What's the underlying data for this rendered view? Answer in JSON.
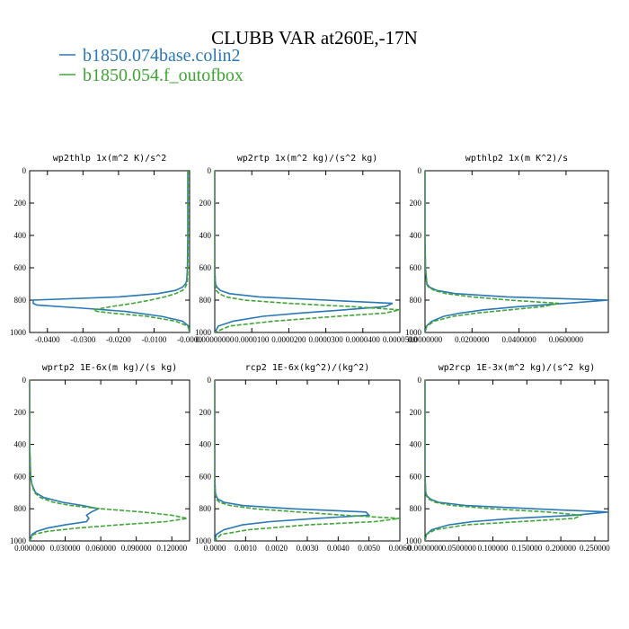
{
  "figure": {
    "title": "CLUBB VAR at260E,-17N",
    "colors": {
      "series1": "#2a78b4",
      "series2": "#3fa535"
    }
  },
  "chart_data": [
    {
      "type": "line",
      "title": "wp2thlp   1x(m^2 K)/s^2",
      "ylim": [
        1000,
        0
      ],
      "xlim": [
        -0.045,
        0.0
      ],
      "yticks": [
        "0",
        "200",
        "400",
        "600",
        "800",
        "1000"
      ],
      "xticks": [
        "-0.0400",
        "-0.0300",
        "-0.0200",
        "-0.0100",
        "-0.0000"
      ],
      "xtick_values": [
        -0.04,
        -0.03,
        -0.02,
        -0.01,
        0.0
      ],
      "grid": false,
      "legend": "top",
      "series": [
        {
          "name": "b1850.074base.colin2",
          "style": "solid",
          "y": [
            0,
            200,
            400,
            600,
            680,
            700,
            720,
            740,
            760,
            780,
            800,
            820,
            830,
            850,
            870,
            900,
            930,
            960,
            1000
          ],
          "x": [
            -0.0005,
            -0.0005,
            -0.0005,
            -0.0006,
            -0.0008,
            -0.0012,
            -0.002,
            -0.004,
            -0.009,
            -0.02,
            -0.044,
            -0.044,
            -0.043,
            -0.03,
            -0.018,
            -0.008,
            -0.002,
            -0.0003,
            0.0
          ]
        },
        {
          "name": "b1850.054.f_outofbox",
          "style": "dashed",
          "y": [
            0,
            200,
            400,
            600,
            680,
            700,
            720,
            740,
            760,
            780,
            800,
            820,
            840,
            860,
            870,
            880,
            900,
            930,
            960,
            1000
          ],
          "x": [
            -0.0004,
            -0.0004,
            -0.0004,
            -0.0005,
            -0.0006,
            -0.0008,
            -0.0012,
            -0.002,
            -0.004,
            -0.007,
            -0.011,
            -0.016,
            -0.022,
            -0.027,
            -0.026,
            -0.022,
            -0.012,
            -0.004,
            -0.0005,
            0.0
          ]
        }
      ]
    },
    {
      "type": "line",
      "title": "wp2rtp   1x(m^2 kg)/(s^2 kg)",
      "ylim": [
        1000,
        0
      ],
      "xlim": [
        0.0,
        5e-05
      ],
      "yticks": [
        "0",
        "200",
        "400",
        "600",
        "800",
        "1000"
      ],
      "xticks": [
        "0.00000000",
        "0.0000100",
        "0.0000200",
        "0.0000300",
        "0.0000400",
        "0.0000500"
      ],
      "xtick_values": [
        0.0,
        1e-05,
        2e-05,
        3e-05,
        4e-05,
        5e-05
      ],
      "grid": false,
      "legend": "top",
      "series": [
        {
          "name": "b1850.074base.colin2",
          "style": "solid",
          "y": [
            0,
            200,
            400,
            600,
            700,
            720,
            740,
            760,
            780,
            800,
            820,
            840,
            860,
            880,
            900,
            930,
            960,
            1000
          ],
          "x": [
            0.0,
            0.0,
            0.0,
            0.0,
            2e-07,
            6e-07,
            1.5e-06,
            4e-06,
            1.2e-05,
            3e-05,
            4.8e-05,
            4.6e-05,
            3.5e-05,
            2.3e-05,
            1.3e-05,
            5e-06,
            1e-06,
            0.0
          ]
        },
        {
          "name": "b1850.054.f_outofbox",
          "style": "dashed",
          "y": [
            0,
            200,
            400,
            600,
            700,
            740,
            760,
            780,
            800,
            820,
            840,
            860,
            880,
            900,
            930,
            960,
            1000
          ],
          "x": [
            0.0,
            0.0,
            0.0,
            0.0,
            1e-07,
            4e-07,
            1.2e-06,
            3e-06,
            8e-06,
            2e-05,
            3.7e-05,
            5e-05,
            4.6e-05,
            3.3e-05,
            1.6e-05,
            4e-06,
            0.0
          ]
        }
      ]
    },
    {
      "type": "line",
      "title": "wpthlp2   1x(m K^2)/s",
      "ylim": [
        1000,
        0
      ],
      "xlim": [
        0.0,
        0.078
      ],
      "yticks": [
        "0",
        "200",
        "400",
        "600",
        "800",
        "1000"
      ],
      "xticks": [
        "0.0000000",
        "0.0200000",
        "0.0400000",
        "0.0600000"
      ],
      "xtick_values": [
        0.0,
        0.02,
        0.04,
        0.06
      ],
      "grid": false,
      "legend": "top",
      "series": [
        {
          "name": "b1850.074base.colin2",
          "style": "solid",
          "y": [
            0,
            200,
            400,
            600,
            700,
            720,
            740,
            760,
            780,
            800,
            820,
            840,
            860,
            880,
            900,
            930,
            960,
            1000
          ],
          "x": [
            0.0,
            0.0,
            0.0,
            0.0002,
            0.0008,
            0.002,
            0.005,
            0.013,
            0.035,
            0.078,
            0.06,
            0.04,
            0.025,
            0.015,
            0.008,
            0.003,
            0.0006,
            0.0
          ]
        },
        {
          "name": "b1850.054.f_outofbox",
          "style": "dashed",
          "y": [
            0,
            200,
            400,
            600,
            700,
            720,
            740,
            760,
            780,
            800,
            820,
            840,
            860,
            880,
            900,
            930,
            960,
            1000
          ],
          "x": [
            0.0,
            0.0,
            0.0,
            0.0002,
            0.0007,
            0.0015,
            0.004,
            0.009,
            0.02,
            0.036,
            0.057,
            0.05,
            0.036,
            0.022,
            0.012,
            0.004,
            0.0008,
            0.0
          ]
        }
      ]
    },
    {
      "type": "line",
      "title": "wprtp2   1E-6x(m kg)/(s kg)",
      "ylim": [
        1000,
        0
      ],
      "xlim": [
        0.0,
        0.135
      ],
      "yticks": [
        "0",
        "200",
        "400",
        "600",
        "800",
        "1000"
      ],
      "xticks": [
        "0.000000",
        "0.030000",
        "0.060000",
        "0.090000",
        "0.120000"
      ],
      "xtick_values": [
        0.0,
        0.03,
        0.06,
        0.09,
        0.12
      ],
      "grid": false,
      "legend": "top",
      "series": [
        {
          "name": "b1850.074base.colin2",
          "style": "solid",
          "y": [
            0,
            200,
            400,
            600,
            650,
            700,
            730,
            760,
            780,
            800,
            820,
            840,
            860,
            880,
            900,
            920,
            940,
            960,
            1000
          ],
          "x": [
            0.0,
            0.0,
            0.0,
            0.0008,
            0.002,
            0.005,
            0.012,
            0.028,
            0.045,
            0.058,
            0.052,
            0.048,
            0.05,
            0.048,
            0.03,
            0.015,
            0.006,
            0.002,
            0.0
          ]
        },
        {
          "name": "b1850.054.f_outofbox",
          "style": "dashed",
          "y": [
            0,
            200,
            400,
            600,
            650,
            700,
            730,
            760,
            780,
            800,
            820,
            840,
            860,
            880,
            900,
            920,
            940,
            960,
            1000
          ],
          "x": [
            0.0,
            0.0,
            0.0,
            0.0008,
            0.002,
            0.004,
            0.009,
            0.02,
            0.035,
            0.06,
            0.095,
            0.12,
            0.133,
            0.115,
            0.075,
            0.04,
            0.015,
            0.003,
            0.0
          ]
        }
      ]
    },
    {
      "type": "line",
      "title": "rcp2   1E-6x(kg^2)/(kg^2)",
      "ylim": [
        1000,
        0
      ],
      "xlim": [
        0.0,
        0.006
      ],
      "yticks": [
        "0",
        "200",
        "400",
        "600",
        "800",
        "1000"
      ],
      "xticks": [
        "0.0000",
        "0.0010",
        "0.0020",
        "0.0030",
        "0.0040",
        "0.0050",
        "0.0060"
      ],
      "xtick_values": [
        0.0,
        0.001,
        0.002,
        0.003,
        0.004,
        0.005,
        0.006
      ],
      "grid": false,
      "legend": "top",
      "series": [
        {
          "name": "b1850.074base.colin2",
          "style": "solid",
          "y": [
            0,
            200,
            400,
            600,
            700,
            720,
            740,
            760,
            780,
            800,
            820,
            840,
            860,
            880,
            900,
            930,
            960,
            1000
          ],
          "x": [
            0.0,
            0.0,
            0.0,
            0.0,
            2e-05,
            5e-05,
            0.0001,
            0.0003,
            0.0009,
            0.0025,
            0.0049,
            0.005,
            0.0033,
            0.0018,
            0.0009,
            0.0003,
            5e-05,
            0.0
          ]
        },
        {
          "name": "b1850.054.f_outofbox",
          "style": "dashed",
          "y": [
            0,
            200,
            400,
            600,
            700,
            740,
            760,
            780,
            800,
            820,
            840,
            860,
            880,
            900,
            930,
            960,
            1000
          ],
          "x": [
            0.0,
            0.0,
            0.0,
            0.0,
            1e-05,
            5e-05,
            0.00015,
            0.0005,
            0.0013,
            0.0027,
            0.0042,
            0.006,
            0.0052,
            0.003,
            0.0011,
            0.0002,
            0.0
          ]
        }
      ]
    },
    {
      "type": "line",
      "title": "wp2rcp   1E-3x(m^2 kg)/(s^2 kg)",
      "ylim": [
        1000,
        0
      ],
      "xlim": [
        0.0,
        0.27
      ],
      "yticks": [
        "0",
        "200",
        "400",
        "600",
        "800",
        "1000"
      ],
      "xticks": [
        "0.0000000",
        "0.0500000",
        "0.100000",
        "0.150000",
        "0.200000",
        "0.250000"
      ],
      "xtick_values": [
        0.0,
        0.05,
        0.1,
        0.15,
        0.2,
        0.25
      ],
      "grid": false,
      "legend": "top",
      "series": [
        {
          "name": "b1850.074base.colin2",
          "style": "solid",
          "y": [
            0,
            200,
            400,
            600,
            700,
            720,
            740,
            760,
            780,
            800,
            820,
            840,
            860,
            880,
            900,
            930,
            960,
            1000
          ],
          "x": [
            0.0,
            0.0,
            0.0,
            0.0,
            0.001,
            0.003,
            0.008,
            0.02,
            0.06,
            0.16,
            0.27,
            0.22,
            0.13,
            0.07,
            0.035,
            0.01,
            0.002,
            0.0
          ]
        },
        {
          "name": "b1850.054.f_outofbox",
          "style": "dashed",
          "y": [
            0,
            200,
            400,
            600,
            700,
            720,
            740,
            760,
            780,
            800,
            820,
            840,
            860,
            880,
            900,
            930,
            960,
            1000
          ],
          "x": [
            0.0,
            0.0,
            0.0,
            0.0,
            0.001,
            0.002,
            0.006,
            0.015,
            0.04,
            0.1,
            0.18,
            0.23,
            0.22,
            0.14,
            0.06,
            0.015,
            0.002,
            0.0
          ]
        }
      ]
    }
  ]
}
